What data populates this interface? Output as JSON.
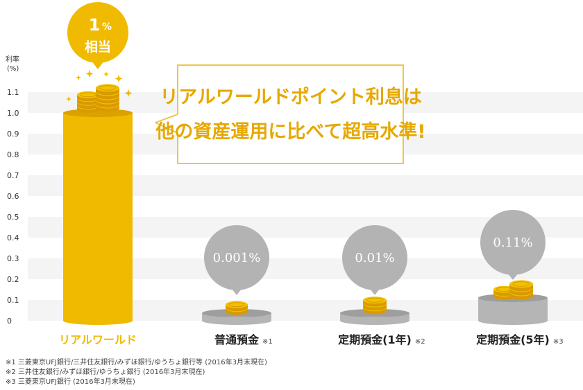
{
  "chart_data": {
    "type": "bar",
    "ylabel_line1": "利率",
    "ylabel_line2": "(%)",
    "yticks": [
      "0",
      "0.1",
      "0.2",
      "0.3",
      "0.4",
      "0.5",
      "0.6",
      "0.7",
      "0.8",
      "0.9",
      "1.0",
      "1.1"
    ],
    "ylim": [
      0,
      1.1
    ],
    "grid": "horizontal-bands",
    "categories": [
      "リアルワールド",
      "普通預金",
      "定期預金(1年)",
      "定期預金(5年)"
    ],
    "category_notes": [
      "",
      "※1",
      "※2",
      "※3"
    ],
    "values": [
      1,
      0.001,
      0.01,
      0.11
    ],
    "value_labels": [
      "1%相当",
      "0.001%",
      "0.01%",
      "0.11%"
    ],
    "highlight_bubble": {
      "line1_num": "1",
      "line1_unit": "%",
      "line2": "相当"
    },
    "callout": {
      "line1": "リアルワールドポイント利息は",
      "line2": "他の資産運用に比べて超高水準!"
    },
    "colors": {
      "highlight": "#F0BA00",
      "highlight_dark": "#D9A200",
      "gray_bar": "#B5B5B5",
      "gray_bubble": "#B3B3B3",
      "band": "#F4F4F4",
      "callout_border": "#F0C640",
      "callout_text": "#E6A800",
      "coin": "#F2C200",
      "coin_edge": "#D99A00"
    }
  },
  "footnotes": [
    "※1 三菱東京UFJ銀行/三井住友銀行/みずほ銀行/ゆうちょ銀行等 (2016年3月末現在)",
    "※2 三井住友銀行/みずほ銀行/ゆうちょ銀行 (2016年3月末現在)",
    "※3 三菱東京UFJ銀行 (2016年3月末現在)"
  ]
}
